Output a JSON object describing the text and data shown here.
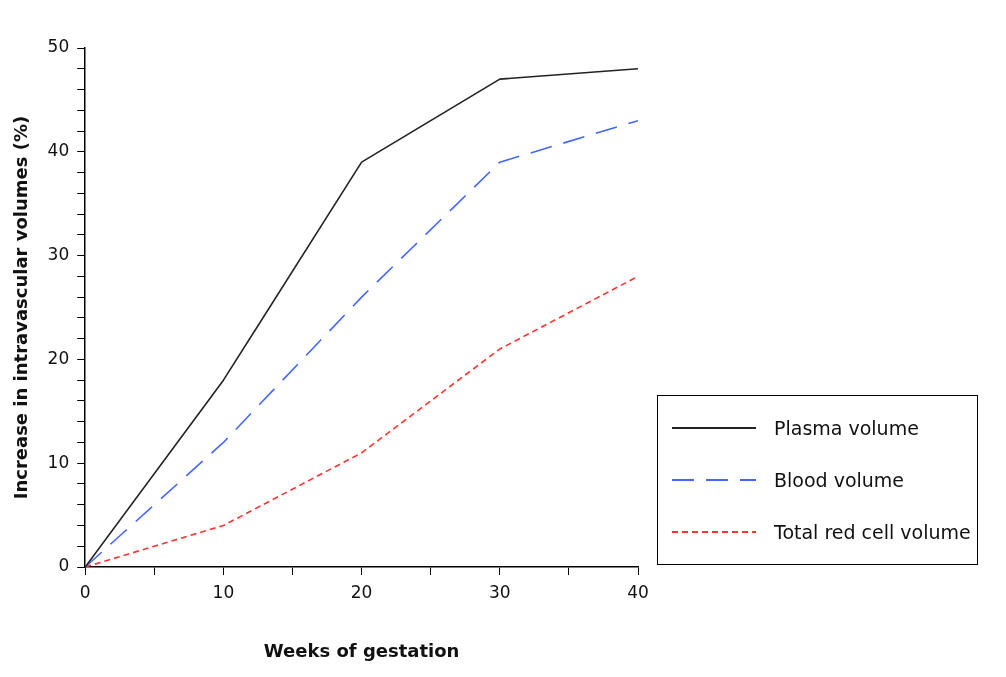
{
  "chart_data": {
    "type": "line",
    "xlabel": "Weeks of gestation",
    "ylabel": "Increase in intravascular volumes (%)",
    "x": [
      0,
      10,
      20,
      30,
      40
    ],
    "series": [
      {
        "name": "Plasma volume",
        "color": "#222222",
        "line_style": "solid",
        "values": [
          0,
          18,
          39,
          47,
          48
        ]
      },
      {
        "name": "Blood volume",
        "color": "#4466ff",
        "line_style": "dashed",
        "values": [
          0,
          12,
          26,
          39,
          43
        ]
      },
      {
        "name": "Total red cell volume",
        "color": "#ff3333",
        "line_style": "dotted",
        "values": [
          0,
          4,
          11,
          21,
          28
        ]
      }
    ],
    "xlim": [
      0,
      40
    ],
    "xticks": [
      0,
      {
        "value": 5,
        "label": null
      },
      10,
      {
        "value": 15,
        "label": null
      },
      20,
      {
        "value": 25,
        "label": null
      },
      30,
      {
        "value": 35,
        "label": null
      },
      40
    ],
    "ylim": [
      0,
      50
    ],
    "yticks": [
      0,
      {
        "value": 2,
        "label": null
      },
      {
        "value": 4,
        "label": null
      },
      {
        "value": 6,
        "label": null
      },
      {
        "value": 8,
        "label": null
      },
      10,
      {
        "value": 12,
        "label": null
      },
      {
        "value": 14,
        "label": null
      },
      {
        "value": 16,
        "label": null
      },
      {
        "value": 18,
        "label": null
      },
      20,
      {
        "value": 22,
        "label": null
      },
      {
        "value": 24,
        "label": null
      },
      {
        "value": 26,
        "label": null
      },
      {
        "value": 28,
        "label": null
      },
      30,
      {
        "value": 32,
        "label": null
      },
      {
        "value": 34,
        "label": null
      },
      {
        "value": 36,
        "label": null
      },
      {
        "value": 38,
        "label": null
      },
      40,
      {
        "value": 42,
        "label": null
      },
      {
        "value": 44,
        "label": null
      },
      {
        "value": 46,
        "label": null
      },
      {
        "value": 48,
        "label": null
      },
      50
    ],
    "grid": false,
    "legend": "bottom right",
    "marker": "none"
  }
}
